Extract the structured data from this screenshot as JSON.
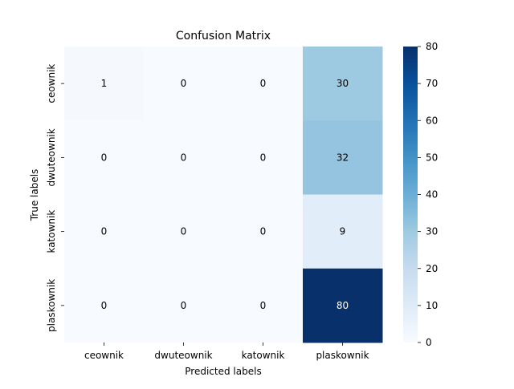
{
  "chart_data": {
    "type": "heatmap",
    "title": "Confusion Matrix",
    "xlabel": "Predicted labels",
    "ylabel": "True labels",
    "x_categories": [
      "ceownik",
      "dwuteownik",
      "katownik",
      "plaskownik"
    ],
    "y_categories": [
      "ceownik",
      "dwuteownik",
      "katownik",
      "plaskownik"
    ],
    "values": [
      [
        1,
        0,
        0,
        30
      ],
      [
        0,
        0,
        0,
        32
      ],
      [
        0,
        0,
        0,
        9
      ],
      [
        0,
        0,
        0,
        80
      ]
    ],
    "colormap": "Blues",
    "colorbar": {
      "range": [
        0,
        80
      ],
      "ticks": [
        0,
        10,
        20,
        30,
        40,
        50,
        60,
        70,
        80
      ]
    },
    "grid": false,
    "annotations": true
  }
}
